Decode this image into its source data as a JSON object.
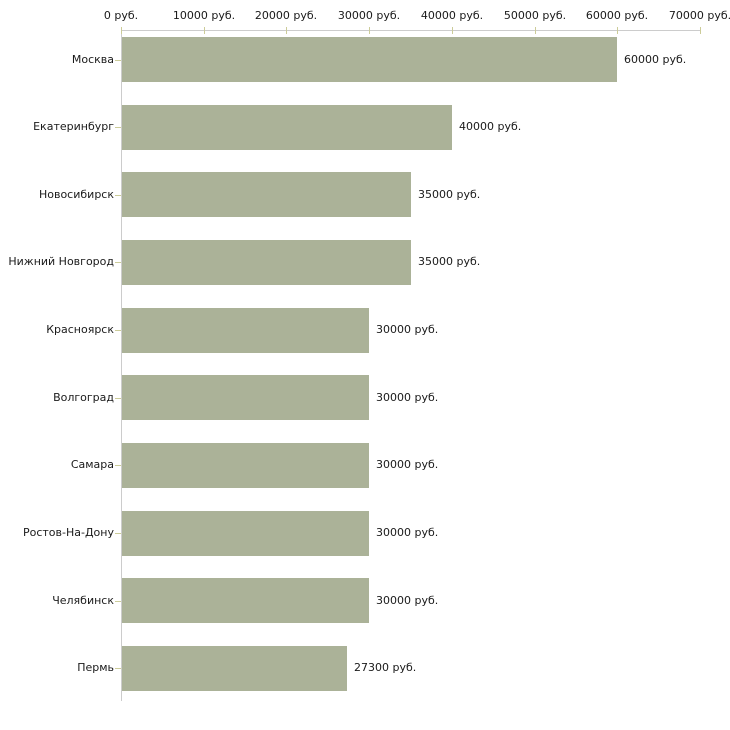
{
  "chart_data": {
    "type": "bar",
    "orientation": "horizontal",
    "unit": "руб.",
    "categories": [
      "Москва",
      "Екатеринбург",
      "Новосибирск",
      "Нижний Новгород",
      "Красноярск",
      "Волгоград",
      "Самара",
      "Ростов-На-Дону",
      "Челябинск",
      "Пермь"
    ],
    "values": [
      60000,
      40000,
      35000,
      35000,
      30000,
      30000,
      30000,
      30000,
      30000,
      27300
    ],
    "value_labels": [
      "60000 руб.",
      "40000 руб.",
      "35000 руб.",
      "35000 руб.",
      "30000 руб.",
      "30000 руб.",
      "30000 руб.",
      "30000 руб.",
      "30000 руб.",
      "27300 руб."
    ],
    "x_tick_values": [
      0,
      10000,
      20000,
      30000,
      40000,
      50000,
      60000,
      70000
    ],
    "x_tick_labels": [
      "0 руб.",
      "10000 руб.",
      "20000 руб.",
      "30000 руб.",
      "40000 руб.",
      "50000 руб.",
      "60000 руб.",
      "70000 руб."
    ],
    "xlim": [
      0,
      70000
    ],
    "grid": false,
    "legend": false,
    "axis_position": "top",
    "colors": {
      "bar": "#ABB298",
      "axis": "#CCCCCC",
      "tick": "#CCCC99",
      "text": "#1A1A1A",
      "background": "#FFFFFF"
    }
  }
}
